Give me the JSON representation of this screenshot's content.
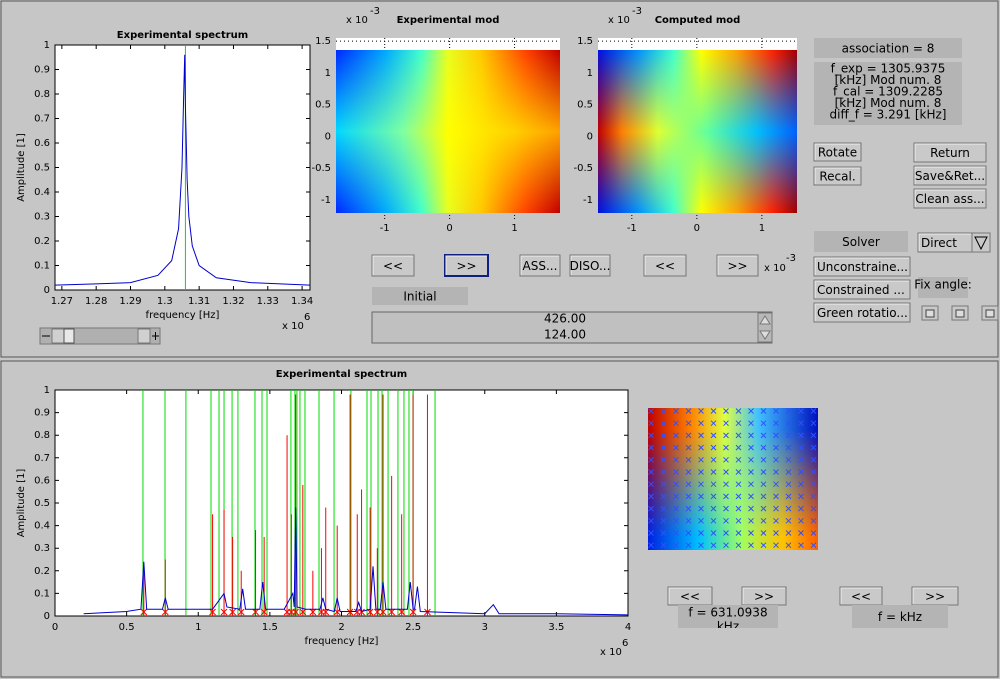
{
  "top_spectrum": {
    "title": "Experimental spectrum",
    "xlabel": "frequency [Hz]",
    "ylabel": "Amplitude [1]",
    "exponent": "x 10",
    "exponent_power": "6",
    "xlim": [
      1.268,
      1.3423
    ],
    "xticks": [
      1.27,
      1.28,
      1.29,
      1.3,
      1.31,
      1.32,
      1.33,
      1.34
    ],
    "ylim": [
      0,
      1
    ],
    "yticks": [
      0,
      0.1,
      0.2,
      0.3,
      0.4,
      0.5,
      0.6,
      0.7,
      0.8,
      0.9,
      1
    ],
    "x": [
      1.268,
      1.28,
      1.29,
      1.298,
      1.302,
      1.304,
      1.305,
      1.3055,
      1.3058,
      1.306,
      1.3065,
      1.307,
      1.308,
      1.31,
      1.315,
      1.325,
      1.3423
    ],
    "values": [
      0.02,
      0.025,
      0.03,
      0.06,
      0.12,
      0.25,
      0.5,
      0.8,
      0.96,
      0.75,
      0.45,
      0.3,
      0.18,
      0.1,
      0.05,
      0.03,
      0.02
    ],
    "marker_x": 1.306
  },
  "experimental_mode": {
    "title": "Experimental mod",
    "exponent": "x 10",
    "exponent_power": "-3",
    "xlim": [
      -1.75,
      1.7
    ],
    "xticks": [
      -1,
      0,
      1
    ],
    "ylim": [
      -1.24,
      1.55
    ],
    "yticks": [
      -1,
      -0.5,
      0,
      0.5,
      1,
      1.5
    ]
  },
  "computed_mode": {
    "title": "Computed mod",
    "exponent": "x 10",
    "exponent_power": "-3",
    "xlim": [
      -1.52,
      1.54
    ],
    "xticks": [
      -1,
      0,
      1
    ],
    "ylim": [
      -1.24,
      1.55
    ],
    "yticks": [
      -1,
      -0.5,
      0,
      0.5,
      1,
      1.5
    ]
  },
  "mode_buttons": [
    "<<",
    ">>",
    "ASS...",
    "DISO...",
    "<<",
    ">>"
  ],
  "mode_exponent": "x 10",
  "mode_exponent_power": "-3",
  "initial_label": "Initial",
  "listbox": [
    "426.00",
    "124.00"
  ],
  "association": "association = 8",
  "info_lines": [
    "f_exp = 1305.9375",
    "[kHz]  Mod num. 8",
    "f_cal = 1309.2285",
    "[kHz]  Mod num. 8",
    "diff_f = 3.291 [kHz]"
  ],
  "buttons": {
    "rotate": "Rotate",
    "recal": "Recal.",
    "return": "Return",
    "save_return": "Save&Ret...",
    "clean": "Clean ass...",
    "unconstrained": "Unconstraine...",
    "constrained": "Constrained ...",
    "green_rotation": "Green rotatio..."
  },
  "solver": "Solver",
  "solver_option": "Direct",
  "fix_angle": "Fix angle:",
  "bottom_spectrum": {
    "title": "Experimental spectrum",
    "xlabel": "frequency [Hz]",
    "ylabel": "Amplitude [1]",
    "exponent": "x 10",
    "exponent_power": "6",
    "xlim": [
      0,
      4
    ],
    "xticks": [
      0,
      0.5,
      1,
      1.5,
      2,
      2.5,
      3,
      3.5,
      4
    ],
    "ylim": [
      0,
      1
    ],
    "yticks": [
      0,
      0.1,
      0.2,
      0.3,
      0.4,
      0.5,
      0.6,
      0.7,
      0.8,
      0.9,
      1
    ],
    "x": [
      0.2,
      0.5,
      0.6,
      0.62,
      0.64,
      0.75,
      0.77,
      0.79,
      1.1,
      1.18,
      1.2,
      1.29,
      1.31,
      1.33,
      1.43,
      1.45,
      1.47,
      1.6,
      1.66,
      1.67,
      1.68,
      1.69,
      1.75,
      1.85,
      1.87,
      1.89,
      1.95,
      1.97,
      1.99,
      2.1,
      2.12,
      2.14,
      2.2,
      2.22,
      2.24,
      2.27,
      2.29,
      2.31,
      2.46,
      2.48,
      2.5,
      2.51,
      2.53,
      2.55,
      3.0,
      3.06,
      3.1,
      3.5,
      4.0
    ],
    "values": [
      0.01,
      0.02,
      0.03,
      0.24,
      0.03,
      0.03,
      0.08,
      0.03,
      0.03,
      0.1,
      0.04,
      0.03,
      0.12,
      0.03,
      0.03,
      0.15,
      0.03,
      0.03,
      0.1,
      0.04,
      0.48,
      0.04,
      0.03,
      0.03,
      0.08,
      0.03,
      0.02,
      0.08,
      0.02,
      0.02,
      0.06,
      0.02,
      0.03,
      0.22,
      0.03,
      0.03,
      0.15,
      0.03,
      0.03,
      0.15,
      0.03,
      0.03,
      0.13,
      0.02,
      0.01,
      0.05,
      0.01,
      0.01,
      0.005
    ],
    "green_lines": [
      0.614,
      0.768,
      0.914,
      1.089,
      1.145,
      1.18,
      1.236,
      1.277,
      1.396,
      1.445,
      1.48,
      1.647,
      1.675,
      1.689,
      1.71,
      1.745,
      1.843,
      1.948,
      2.066,
      2.178,
      2.206,
      2.255,
      2.283,
      2.325,
      2.394,
      2.436,
      2.471,
      2.499,
      2.653
    ],
    "red_lines": {
      "x": [
        0.62,
        0.77,
        1.1,
        1.18,
        1.24,
        1.3,
        1.4,
        1.46,
        1.62,
        1.65,
        1.68,
        1.73,
        1.8,
        1.86,
        1.89,
        1.97,
        2.06,
        2.11,
        2.14,
        2.2,
        2.25,
        2.29,
        2.35,
        2.42,
        2.5,
        2.6
      ],
      "values": [
        0.22,
        0.25,
        0.45,
        0.47,
        0.35,
        0.2,
        0.38,
        0.35,
        0.8,
        0.45,
        0.98,
        0.58,
        0.2,
        0.3,
        0.48,
        0.4,
        0.98,
        0.45,
        0.56,
        0.48,
        0.3,
        0.98,
        0.62,
        0.45,
        0.98,
        0.98
      ]
    }
  },
  "nav": {
    "prev": "<<",
    "next": ">>",
    "freq": "f = 631.0938",
    "freq_unit": "kHz",
    "prev2": "<<",
    "next2": ">>",
    "freq2": "f =     kHz"
  }
}
